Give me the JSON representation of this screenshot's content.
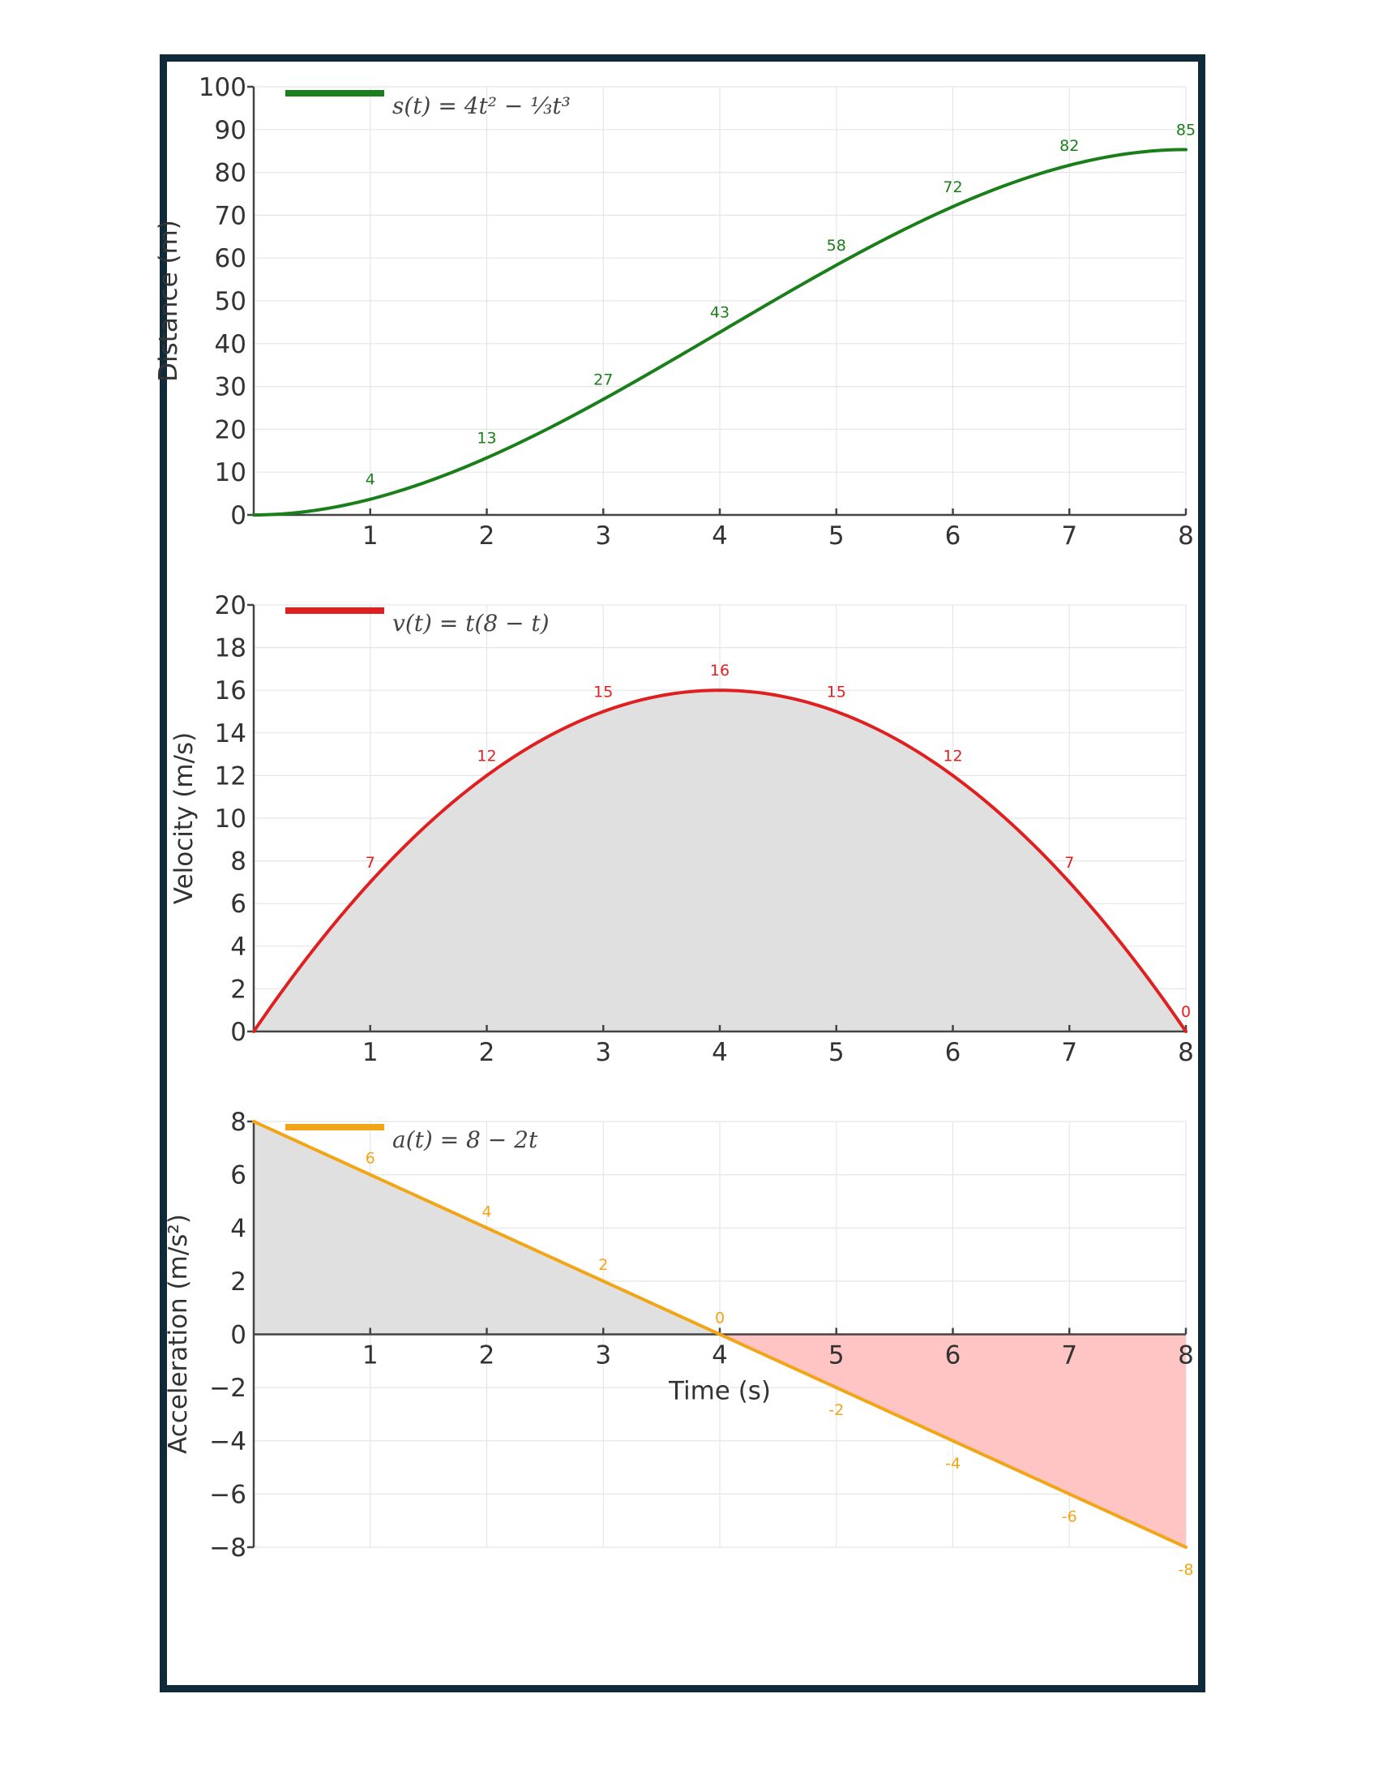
{
  "chart_data": [
    {
      "type": "line",
      "legend": "s(t) = 4t² − ⅓t³",
      "legend_placement": "top-left",
      "color": "#1a7f1a",
      "ylabel": "Distance (m)",
      "xlabel": "",
      "xlim": [
        0,
        8
      ],
      "ylim": [
        0,
        100
      ],
      "grid": true,
      "x_ticks": [
        "1",
        "2",
        "3",
        "4",
        "5",
        "6",
        "7",
        "8"
      ],
      "y_ticks": [
        "0",
        "10",
        "20",
        "30",
        "40",
        "50",
        "60",
        "70",
        "80",
        "90",
        "100"
      ],
      "series": [
        {
          "x": [
            0,
            1,
            2,
            3,
            4,
            5,
            6,
            7,
            8
          ],
          "y": [
            0,
            3.67,
            13.33,
            27,
            42.67,
            58.33,
            72,
            81.67,
            85.33
          ]
        }
      ],
      "data_labels": [
        {
          "x": 1,
          "text": "4"
        },
        {
          "x": 2,
          "text": "13"
        },
        {
          "x": 3,
          "text": "27"
        },
        {
          "x": 4,
          "text": "43"
        },
        {
          "x": 5,
          "text": "58"
        },
        {
          "x": 6,
          "text": "72"
        },
        {
          "x": 7,
          "text": "82"
        },
        {
          "x": 8,
          "text": "85"
        }
      ]
    },
    {
      "type": "area",
      "legend": "v(t) = t(8 − t)",
      "legend_placement": "top-left",
      "color": "#e02020",
      "fill_color": "#e0e0e0",
      "ylabel": "Velocity (m/s)",
      "xlabel": "",
      "xlim": [
        0,
        8
      ],
      "ylim": [
        0,
        20
      ],
      "grid": true,
      "x_ticks": [
        "1",
        "2",
        "3",
        "4",
        "5",
        "6",
        "7",
        "8"
      ],
      "y_ticks": [
        "0",
        "2",
        "4",
        "6",
        "8",
        "10",
        "12",
        "14",
        "16",
        "18",
        "20"
      ],
      "series": [
        {
          "x": [
            0,
            1,
            2,
            3,
            4,
            5,
            6,
            7,
            8
          ],
          "y": [
            0,
            7,
            12,
            15,
            16,
            15,
            12,
            7,
            0
          ]
        }
      ],
      "data_labels": [
        {
          "x": 1,
          "text": "7"
        },
        {
          "x": 2,
          "text": "12"
        },
        {
          "x": 3,
          "text": "15"
        },
        {
          "x": 4,
          "text": "16"
        },
        {
          "x": 5,
          "text": "15"
        },
        {
          "x": 6,
          "text": "12"
        },
        {
          "x": 7,
          "text": "7"
        },
        {
          "x": 8,
          "text": "0"
        }
      ]
    },
    {
      "type": "area",
      "legend": "a(t) = 8 − 2t",
      "legend_placement": "top-left",
      "color": "#f2a516",
      "fill_positive": "#e0e0e0",
      "fill_negative": "#ffc4c4",
      "ylabel": "Acceleration (m/s²)",
      "xlabel": "Time (s)",
      "xlim": [
        0,
        8
      ],
      "ylim": [
        -8,
        8
      ],
      "grid": true,
      "x_ticks": [
        "1",
        "2",
        "3",
        "4",
        "5",
        "6",
        "7",
        "8"
      ],
      "y_ticks": [
        "−8",
        "−6",
        "−4",
        "−2",
        "0",
        "2",
        "4",
        "6",
        "8"
      ],
      "series": [
        {
          "x": [
            0,
            1,
            2,
            3,
            4,
            5,
            6,
            7,
            8
          ],
          "y": [
            8,
            6,
            4,
            2,
            0,
            -2,
            -4,
            -6,
            -8
          ]
        }
      ],
      "data_labels": [
        {
          "x": 1,
          "text": "6"
        },
        {
          "x": 2,
          "text": "4"
        },
        {
          "x": 3,
          "text": "2"
        },
        {
          "x": 4,
          "text": "0"
        },
        {
          "x": 5,
          "text": "-2"
        },
        {
          "x": 6,
          "text": "-4"
        },
        {
          "x": 7,
          "text": "-6"
        },
        {
          "x": 8,
          "text": "-8"
        }
      ]
    }
  ]
}
